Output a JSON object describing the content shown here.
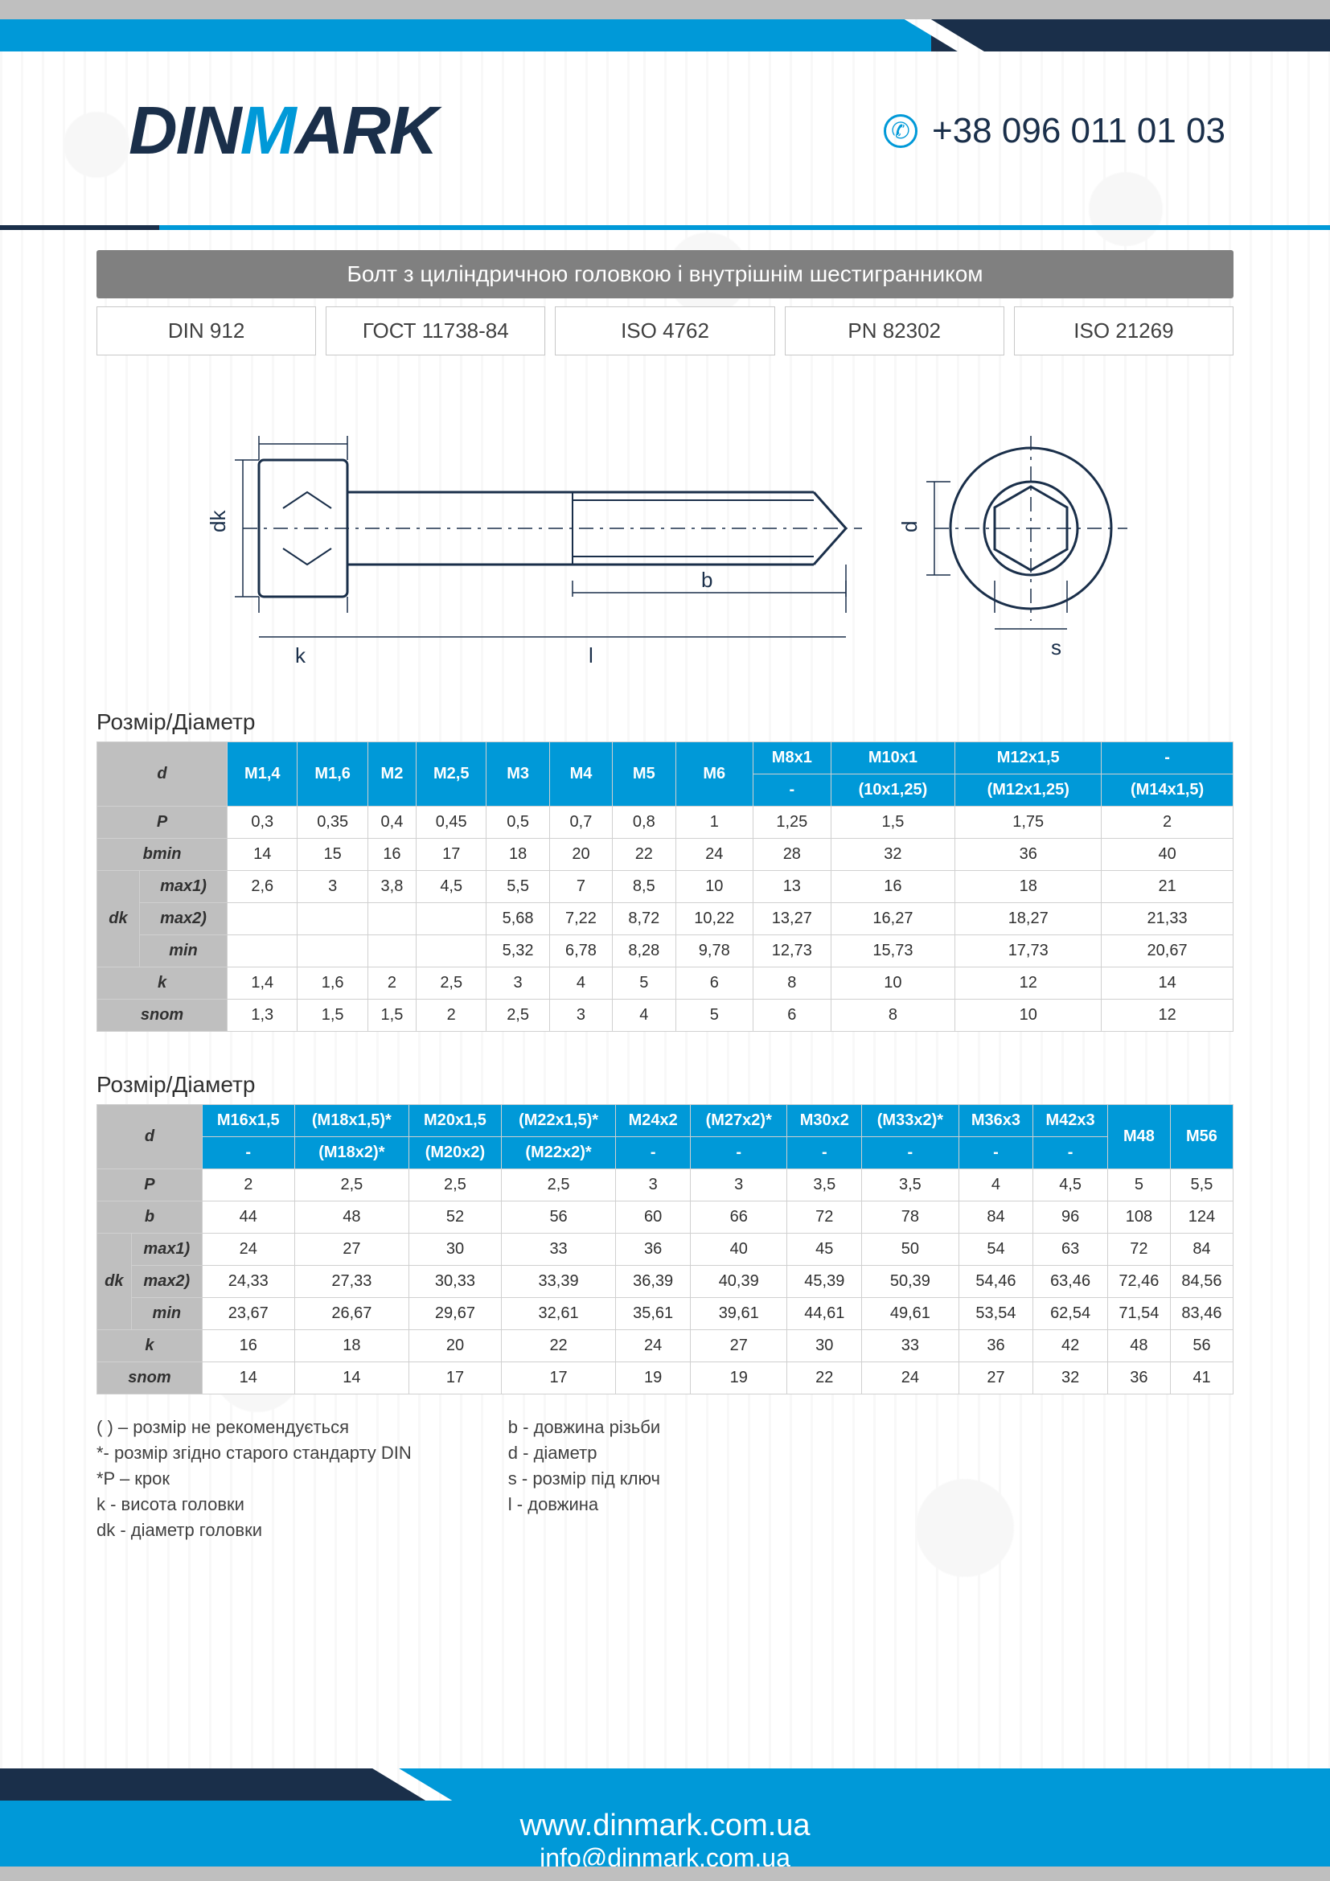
{
  "brand": {
    "pre": "DIN",
    "accent": "M",
    "post": "ARK"
  },
  "phone": "+38 096 011 01 03",
  "title": "Болт з циліндричною головкою і внутрішнім шестигранником",
  "standards": [
    "DIN 912",
    "ГОСТ 11738-84",
    "ISO 4762",
    "PN 82302",
    "ISO 21269"
  ],
  "section_label": "Розмір/Діаметр",
  "diagram_labels": {
    "dk": "dk",
    "k": "k",
    "l": "l",
    "b": "b",
    "d": "d",
    "s": "s"
  },
  "colors": {
    "brand_dark": "#1a2f4a",
    "brand_blue": "#0099d8",
    "header_gray": "#bfbfbf",
    "row_gray": "#bfbfbf",
    "border": "#d0d0d0",
    "text": "#303030",
    "white": "#ffffff"
  },
  "table1": {
    "d_label": "d",
    "row_labels": {
      "P": "P",
      "bmin": "bmin",
      "dk": "dk",
      "max1": "max1)",
      "max2": "max2)",
      "min": "min",
      "k": "k",
      "snom": "snom"
    },
    "top": [
      "M1,4",
      "M1,6",
      "M2",
      "M2,5",
      "M3",
      "M4",
      "M5",
      "M6",
      "M8x1",
      "M10x1",
      "M12x1,5",
      "-"
    ],
    "sub": [
      "",
      "",
      "",
      "",
      "",
      "",
      "",
      "",
      "-",
      "(10x1,25)",
      "(M12x1,25)",
      "(M14x1,5)"
    ],
    "P": [
      "0,3",
      "0,35",
      "0,4",
      "0,45",
      "0,5",
      "0,7",
      "0,8",
      "1",
      "1,25",
      "1,5",
      "1,75",
      "2"
    ],
    "bmin": [
      "14",
      "15",
      "16",
      "17",
      "18",
      "20",
      "22",
      "24",
      "28",
      "32",
      "36",
      "40"
    ],
    "dkmax1": [
      "2,6",
      "3",
      "3,8",
      "4,5",
      "5,5",
      "7",
      "8,5",
      "10",
      "13",
      "16",
      "18",
      "21"
    ],
    "dkmax2": [
      "",
      "",
      "",
      "",
      "5,68",
      "7,22",
      "8,72",
      "10,22",
      "13,27",
      "16,27",
      "18,27",
      "21,33"
    ],
    "dkmin": [
      "",
      "",
      "",
      "",
      "5,32",
      "6,78",
      "8,28",
      "9,78",
      "12,73",
      "15,73",
      "17,73",
      "20,67"
    ],
    "k": [
      "1,4",
      "1,6",
      "2",
      "2,5",
      "3",
      "4",
      "5",
      "6",
      "8",
      "10",
      "12",
      "14"
    ],
    "snom": [
      "1,3",
      "1,5",
      "1,5",
      "2",
      "2,5",
      "3",
      "4",
      "5",
      "6",
      "8",
      "10",
      "12"
    ]
  },
  "table2": {
    "d_label": "d",
    "row_labels": {
      "P": "P",
      "b": "b",
      "dk": "dk",
      "max1": "max1)",
      "max2": "max2)",
      "min": "min",
      "k": "k",
      "snom": "snom"
    },
    "top": [
      "M16x1,5",
      "(M18x1,5)*",
      "M20x1,5",
      "(M22x1,5)*",
      "M24x2",
      "(M27x2)*",
      "M30x2",
      "(M33x2)*",
      "M36x3",
      "M42x3",
      "M48",
      "M56"
    ],
    "sub": [
      "-",
      "(M18x2)*",
      "(M20x2)",
      "(M22x2)*",
      "-",
      "-",
      "-",
      "-",
      "-",
      "-",
      "",
      ""
    ],
    "P": [
      "2",
      "2,5",
      "2,5",
      "2,5",
      "3",
      "3",
      "3,5",
      "3,5",
      "4",
      "4,5",
      "5",
      "5,5"
    ],
    "b": [
      "44",
      "48",
      "52",
      "56",
      "60",
      "66",
      "72",
      "78",
      "84",
      "96",
      "108",
      "124"
    ],
    "dkmax1": [
      "24",
      "27",
      "30",
      "33",
      "36",
      "40",
      "45",
      "50",
      "54",
      "63",
      "72",
      "84"
    ],
    "dkmax2": [
      "24,33",
      "27,33",
      "30,33",
      "33,39",
      "36,39",
      "40,39",
      "45,39",
      "50,39",
      "54,46",
      "63,46",
      "72,46",
      "84,56"
    ],
    "dkmin": [
      "23,67",
      "26,67",
      "29,67",
      "32,61",
      "35,61",
      "39,61",
      "44,61",
      "49,61",
      "53,54",
      "62,54",
      "71,54",
      "83,46"
    ],
    "k": [
      "16",
      "18",
      "20",
      "22",
      "24",
      "27",
      "30",
      "33",
      "36",
      "42",
      "48",
      "56"
    ],
    "snom": [
      "14",
      "14",
      "17",
      "17",
      "19",
      "19",
      "22",
      "24",
      "27",
      "32",
      "36",
      "41"
    ]
  },
  "legend": {
    "left": [
      "( ) – розмір не рекомендується",
      "*- розмір згідно старого стандарту  DIN",
      "*P – крок",
      "k - висота головки",
      "dk - діаметр головки"
    ],
    "right": [
      "b - довжина різьби",
      "d - діаметр",
      "s - розмір під ключ",
      "l - довжина"
    ]
  },
  "footer": {
    "site": "www.dinmark.com.ua",
    "email": "info@dinmark.com.ua"
  }
}
